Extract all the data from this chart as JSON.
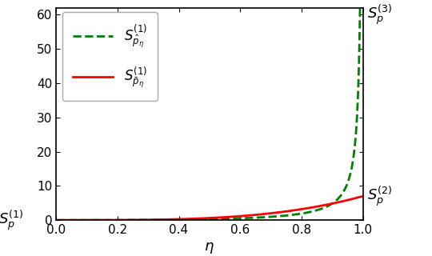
{
  "xlabel": "$\\eta$",
  "xlim": [
    0,
    1.0
  ],
  "ylim": [
    0,
    62
  ],
  "yticks": [
    0,
    10,
    20,
    30,
    40,
    50,
    60
  ],
  "xticks": [
    0,
    0.2,
    0.4,
    0.6,
    0.8,
    1.0
  ],
  "green_color": "#008000",
  "red_color": "#ff0000",
  "bg_color": "#ffffff",
  "label_green": "$S_{\\hat{p}_\\eta}^{(1)}$",
  "label_red": "$S_{\\bar{p}_\\eta}^{(1)}$",
  "annotation_left": "$S_p^{(1)}$",
  "annotation_right_top": "$S_p^{(3)}$",
  "annotation_right_mid": "$S_p^{(2)}$",
  "a_green": 0.6,
  "b_red": 0.072,
  "red_power": 0.5
}
